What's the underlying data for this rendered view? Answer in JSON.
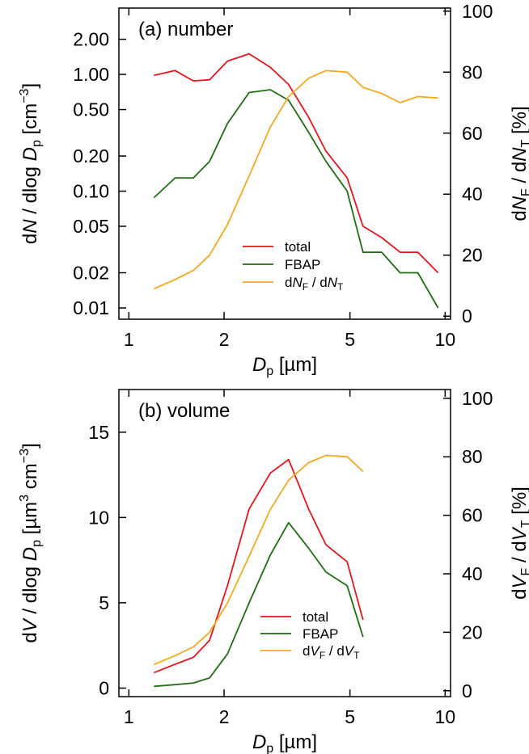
{
  "colors": {
    "total": "#e8141c",
    "fbap": "#1f6e13",
    "ratio": "#f6a821"
  },
  "chart_data": [
    {
      "type": "line",
      "title": "(a) number",
      "xscale": "log",
      "xlim": [
        0.93,
        10.4
      ],
      "xticks": [
        1,
        2,
        5,
        10
      ],
      "xtick_labels": [
        "1",
        "2",
        "5",
        "10"
      ],
      "xlabel": {
        "main": "D",
        "sub": "p",
        "unit": "[µm]"
      },
      "yscale": "log",
      "ylim": [
        0.008,
        3.7
      ],
      "yticks": [
        0.01,
        0.02,
        0.05,
        0.1,
        0.2,
        0.5,
        1.0,
        2.0
      ],
      "ytick_labels": [
        "0.01",
        "0.02",
        "0.05",
        "0.10",
        "0.20",
        "0.50",
        "1.00",
        "2.00"
      ],
      "ylabel": {
        "pre": "d",
        "main": "N",
        "mid": " / dlog ",
        "main2": "D",
        "sub": "p",
        "unit": " [cm",
        "sup": "−3",
        "end": "]"
      },
      "y2lim": [
        -1,
        101
      ],
      "y2ticks": [
        0,
        20,
        40,
        60,
        80,
        100
      ],
      "y2tick_labels": [
        "0",
        "20",
        "40",
        "60",
        "80",
        "100"
      ],
      "y2label": {
        "pre": "d",
        "a": "N",
        "asub": "F",
        "mid": " / d",
        "b": "N",
        "bsub": "T",
        "unit": "  [%]"
      },
      "legend_position": "lower-center",
      "series": [
        {
          "name": "total",
          "key": "total",
          "axis": "left",
          "x": [
            1.2,
            1.4,
            1.6,
            1.8,
            2.05,
            2.4,
            2.8,
            3.2,
            3.7,
            4.2,
            4.9,
            5.5,
            6.3,
            7.2,
            8.2,
            9.5
          ],
          "y": [
            0.98,
            1.08,
            0.88,
            0.9,
            1.3,
            1.5,
            1.15,
            0.82,
            0.43,
            0.22,
            0.13,
            0.05,
            0.04,
            0.03,
            0.03,
            0.02
          ]
        },
        {
          "name": "FBAP",
          "key": "fbap",
          "axis": "left",
          "x": [
            1.2,
            1.4,
            1.6,
            1.8,
            2.05,
            2.4,
            2.8,
            3.2,
            3.7,
            4.2,
            4.9,
            5.5,
            6.3,
            7.2,
            8.2,
            9.5
          ],
          "y": [
            0.088,
            0.13,
            0.13,
            0.18,
            0.38,
            0.7,
            0.74,
            0.6,
            0.32,
            0.18,
            0.1,
            0.03,
            0.03,
            0.02,
            0.02,
            0.01
          ]
        },
        {
          "name_parts": [
            "d",
            "N",
            "F",
            " / d",
            "N",
            "T"
          ],
          "key": "ratio",
          "axis": "right",
          "x": [
            1.2,
            1.4,
            1.6,
            1.8,
            2.05,
            2.4,
            2.8,
            3.2,
            3.7,
            4.2,
            4.9,
            5.5,
            6.3,
            7.2,
            8.2,
            9.5
          ],
          "y": [
            9,
            12,
            15,
            20,
            30,
            46,
            62,
            72,
            78,
            80.5,
            80,
            75,
            73,
            70,
            72,
            71.5
          ]
        }
      ]
    },
    {
      "type": "line",
      "title": "(b) volume",
      "xscale": "log",
      "xlim": [
        0.93,
        10.4
      ],
      "xticks": [
        1,
        2,
        5,
        10
      ],
      "xtick_labels": [
        "1",
        "2",
        "5",
        "10"
      ],
      "xlabel": {
        "main": "D",
        "sub": "p",
        "unit": "[µm]"
      },
      "yscale": "linear",
      "ylim": [
        -0.5,
        17.5
      ],
      "yticks": [
        0,
        5,
        10,
        15
      ],
      "ytick_labels": [
        "0",
        "5",
        "10",
        "15"
      ],
      "ylabel": {
        "pre": "d",
        "main": "V",
        "mid": " / dlog ",
        "main2": "D",
        "sub": "p",
        "unit": " [µm",
        "sup": "3",
        "unit2": " cm",
        "sup2": "−3",
        "end": "]"
      },
      "y2lim": [
        -2,
        103
      ],
      "y2ticks": [
        0,
        20,
        40,
        60,
        80,
        100
      ],
      "y2tick_labels": [
        "0",
        "20",
        "40",
        "60",
        "80",
        "100"
      ],
      "y2label": {
        "pre": "d",
        "a": "V",
        "asub": "F",
        "mid": " / d",
        "b": "V",
        "bsub": "T",
        "unit": "  [%]"
      },
      "legend_position": "lower-center",
      "series": [
        {
          "name": "total",
          "key": "total",
          "axis": "left",
          "x": [
            1.2,
            1.4,
            1.6,
            1.8,
            2.05,
            2.4,
            2.8,
            3.2,
            3.7,
            4.2,
            4.9,
            5.5
          ],
          "y": [
            0.9,
            1.4,
            1.8,
            2.8,
            6.0,
            10.5,
            12.6,
            13.4,
            10.5,
            8.4,
            7.4,
            4.0
          ]
        },
        {
          "name": "FBAP",
          "key": "fbap",
          "axis": "left",
          "x": [
            1.2,
            1.4,
            1.6,
            1.8,
            2.05,
            2.4,
            2.8,
            3.2,
            3.7,
            4.2,
            4.9,
            5.5
          ],
          "y": [
            0.1,
            0.2,
            0.3,
            0.6,
            2.0,
            5.0,
            7.8,
            9.7,
            8.2,
            6.8,
            6.0,
            3.0
          ]
        },
        {
          "name_parts": [
            "d",
            "V",
            "F",
            " / d",
            "V",
            "T"
          ],
          "key": "ratio",
          "axis": "right",
          "x": [
            1.2,
            1.4,
            1.6,
            1.8,
            2.05,
            2.4,
            2.8,
            3.2,
            3.7,
            4.2,
            4.9,
            5.5
          ],
          "y": [
            9,
            12,
            15,
            20,
            30,
            46,
            62,
            72,
            78,
            80.5,
            80,
            75
          ]
        }
      ]
    }
  ]
}
